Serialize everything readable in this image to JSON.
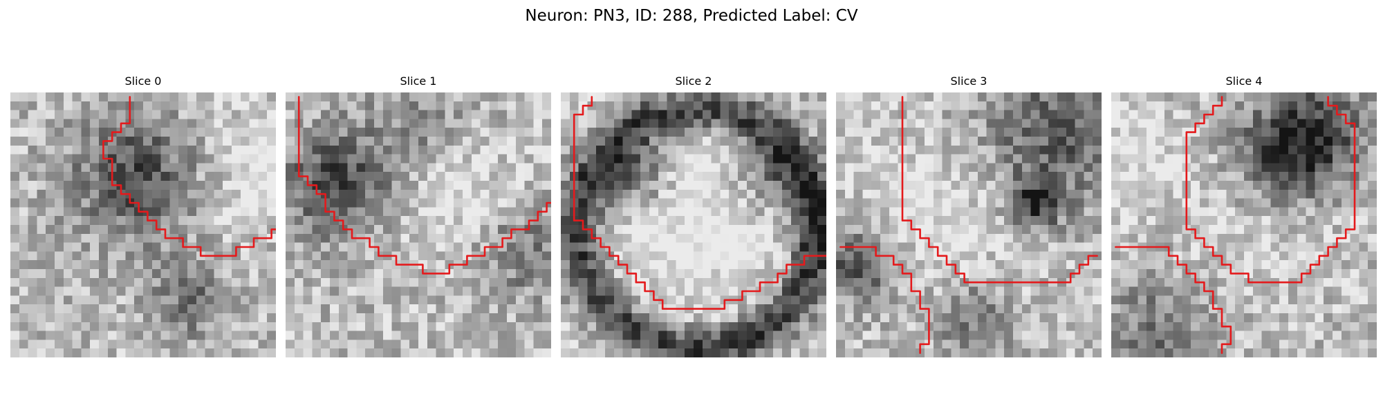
{
  "figure": {
    "title": "Neuron: PN3, ID: 288, Predicted Label: CV"
  },
  "panels": [
    {
      "title": "Slice 0",
      "trace": [
        [
          13,
          0
        ],
        [
          13,
          3
        ],
        [
          12,
          3
        ],
        [
          12,
          4
        ],
        [
          11,
          4
        ],
        [
          11,
          5
        ],
        [
          10,
          5
        ],
        [
          10,
          7
        ],
        [
          11,
          7
        ],
        [
          11,
          10
        ],
        [
          12,
          10
        ],
        [
          12,
          11
        ],
        [
          13,
          11
        ],
        [
          13,
          12
        ],
        [
          14,
          12
        ],
        [
          14,
          13
        ],
        [
          15,
          13
        ],
        [
          15,
          14
        ],
        [
          16,
          14
        ],
        [
          16,
          15
        ],
        [
          17,
          15
        ],
        [
          17,
          16
        ],
        [
          19,
          16
        ],
        [
          19,
          17
        ],
        [
          21,
          17
        ],
        [
          21,
          18
        ],
        [
          25,
          18
        ],
        [
          25,
          17
        ],
        [
          27,
          17
        ],
        [
          27,
          16
        ],
        [
          29,
          16
        ],
        [
          29,
          15
        ],
        [
          30,
          15
        ],
        [
          30,
          14
        ],
        [
          31,
          14
        ],
        [
          31,
          13
        ],
        [
          33,
          13
        ],
        [
          33,
          12
        ],
        [
          34,
          12
        ],
        [
          34,
          11
        ],
        [
          35,
          11
        ],
        [
          35,
          10
        ],
        [
          36,
          10
        ]
      ],
      "seed": 11,
      "blobs": [
        [
          14,
          9,
          5,
          0.55
        ],
        [
          24,
          8,
          6,
          -0.15
        ],
        [
          20,
          23,
          3,
          0.35
        ],
        [
          31,
          8,
          3,
          -0.3
        ]
      ]
    },
    {
      "title": "Slice 1",
      "trace": [
        [
          1,
          0
        ],
        [
          1,
          9
        ],
        [
          2,
          9
        ],
        [
          2,
          10
        ],
        [
          3,
          10
        ],
        [
          3,
          11
        ],
        [
          4,
          11
        ],
        [
          4,
          13
        ],
        [
          5,
          13
        ],
        [
          5,
          14
        ],
        [
          6,
          14
        ],
        [
          6,
          15
        ],
        [
          7,
          15
        ],
        [
          7,
          16
        ],
        [
          9,
          16
        ],
        [
          9,
          17
        ],
        [
          10,
          17
        ],
        [
          10,
          18
        ],
        [
          12,
          18
        ],
        [
          12,
          19
        ],
        [
          15,
          19
        ],
        [
          15,
          20
        ],
        [
          18,
          20
        ],
        [
          18,
          19
        ],
        [
          20,
          19
        ],
        [
          20,
          18
        ],
        [
          22,
          18
        ],
        [
          22,
          17
        ],
        [
          24,
          17
        ],
        [
          24,
          16
        ],
        [
          25,
          16
        ],
        [
          25,
          15
        ],
        [
          27,
          15
        ],
        [
          27,
          14
        ],
        [
          28,
          14
        ],
        [
          28,
          13
        ],
        [
          29,
          13
        ],
        [
          29,
          12
        ],
        [
          31,
          12
        ]
      ],
      "seed": 23,
      "blobs": [
        [
          5,
          10,
          4,
          0.55
        ],
        [
          20,
          12,
          5,
          -0.25
        ],
        [
          26,
          17,
          4,
          0.35
        ],
        [
          14,
          4,
          5,
          0.2
        ]
      ]
    },
    {
      "title": "Slice 2",
      "trace": [
        [
          3,
          0
        ],
        [
          3,
          1
        ],
        [
          2,
          1
        ],
        [
          2,
          2
        ],
        [
          1,
          2
        ],
        [
          1,
          3
        ],
        [
          1,
          14
        ],
        [
          2,
          14
        ],
        [
          2,
          15
        ],
        [
          3,
          15
        ],
        [
          3,
          16
        ],
        [
          4,
          16
        ],
        [
          4,
          17
        ],
        [
          5,
          17
        ],
        [
          5,
          18
        ],
        [
          6,
          18
        ],
        [
          6,
          19
        ],
        [
          7,
          19
        ],
        [
          7,
          20
        ],
        [
          8,
          20
        ],
        [
          8,
          21
        ],
        [
          9,
          21
        ],
        [
          9,
          22
        ],
        [
          10,
          22
        ],
        [
          10,
          23
        ],
        [
          11,
          23
        ],
        [
          11,
          24
        ],
        [
          18,
          24
        ],
        [
          18,
          23
        ],
        [
          20,
          23
        ],
        [
          20,
          22
        ],
        [
          22,
          22
        ],
        [
          22,
          21
        ],
        [
          24,
          21
        ],
        [
          24,
          20
        ],
        [
          25,
          20
        ],
        [
          25,
          19
        ],
        [
          27,
          19
        ],
        [
          27,
          18
        ],
        [
          30,
          18
        ]
      ],
      "ring": [
        15,
        15,
        13.5,
        1.8
      ],
      "seed": 37,
      "blobs": [
        [
          15,
          14,
          8,
          -0.3
        ],
        [
          8,
          9,
          3,
          0.45
        ],
        [
          23,
          9,
          3,
          0.4
        ],
        [
          30,
          15,
          3,
          0.3
        ]
      ]
    },
    {
      "title": "Slice 3",
      "trace": [
        [
          7,
          0
        ],
        [
          7,
          14
        ],
        [
          8,
          14
        ],
        [
          8,
          15
        ],
        [
          9,
          15
        ],
        [
          9,
          16
        ],
        [
          10,
          16
        ],
        [
          10,
          17
        ],
        [
          11,
          17
        ],
        [
          11,
          18
        ],
        [
          12,
          18
        ],
        [
          12,
          19
        ],
        [
          13,
          19
        ],
        [
          13,
          20
        ],
        [
          14,
          20
        ],
        [
          14,
          21
        ],
        [
          26,
          21
        ],
        [
          26,
          20
        ],
        [
          27,
          20
        ],
        [
          27,
          19
        ],
        [
          28,
          19
        ],
        [
          28,
          18
        ],
        [
          29,
          18
        ]
      ],
      "trace2": [
        [
          0,
          17
        ],
        [
          4,
          17
        ],
        [
          4,
          18
        ],
        [
          6,
          18
        ],
        [
          6,
          19
        ],
        [
          7,
          19
        ],
        [
          7,
          20
        ],
        [
          8,
          20
        ],
        [
          8,
          22
        ],
        [
          9,
          22
        ],
        [
          9,
          24
        ],
        [
          10,
          24
        ],
        [
          10,
          28
        ],
        [
          9,
          28
        ],
        [
          9,
          29
        ]
      ],
      "seed": 53,
      "blobs": [
        [
          12,
          13,
          7,
          -0.2
        ],
        [
          22,
          12,
          2,
          0.6
        ],
        [
          2,
          19,
          3,
          0.5
        ],
        [
          24,
          4,
          6,
          0.45
        ],
        [
          15,
          25,
          3,
          0.35
        ]
      ]
    },
    {
      "title": "Slice 4",
      "trace": [
        [
          12,
          0
        ],
        [
          12,
          1
        ],
        [
          11,
          1
        ],
        [
          11,
          2
        ],
        [
          10,
          2
        ],
        [
          10,
          3
        ],
        [
          9,
          3
        ],
        [
          9,
          4
        ],
        [
          8,
          4
        ],
        [
          8,
          15
        ],
        [
          9,
          15
        ],
        [
          9,
          16
        ],
        [
          10,
          16
        ],
        [
          10,
          17
        ],
        [
          11,
          17
        ],
        [
          11,
          18
        ],
        [
          12,
          18
        ],
        [
          12,
          19
        ],
        [
          13,
          19
        ],
        [
          13,
          20
        ],
        [
          15,
          20
        ],
        [
          15,
          21
        ],
        [
          21,
          21
        ],
        [
          21,
          20
        ],
        [
          22,
          20
        ],
        [
          22,
          19
        ],
        [
          23,
          19
        ],
        [
          23,
          18
        ],
        [
          24,
          18
        ],
        [
          24,
          17
        ],
        [
          25,
          17
        ],
        [
          25,
          16
        ],
        [
          26,
          16
        ],
        [
          26,
          15
        ],
        [
          27,
          15
        ],
        [
          27,
          9
        ],
        [
          27,
          3
        ],
        [
          26,
          3
        ],
        [
          26,
          2
        ],
        [
          25,
          2
        ],
        [
          25,
          1
        ],
        [
          24,
          1
        ],
        [
          24,
          0
        ]
      ],
      "trace2": [
        [
          0,
          17
        ],
        [
          6,
          17
        ],
        [
          6,
          18
        ],
        [
          7,
          18
        ],
        [
          7,
          19
        ],
        [
          8,
          19
        ],
        [
          8,
          20
        ],
        [
          9,
          20
        ],
        [
          9,
          21
        ],
        [
          10,
          21
        ],
        [
          10,
          22
        ],
        [
          11,
          22
        ],
        [
          11,
          24
        ],
        [
          12,
          24
        ],
        [
          12,
          26
        ],
        [
          13,
          26
        ],
        [
          13,
          28
        ],
        [
          12,
          28
        ],
        [
          12,
          29
        ]
      ],
      "seed": 71,
      "blobs": [
        [
          19,
          7,
          4,
          0.55
        ],
        [
          23,
          4,
          4,
          0.45
        ],
        [
          5,
          27,
          4,
          0.35
        ],
        [
          18,
          14,
          6,
          -0.15
        ],
        [
          2,
          8,
          4,
          -0.2
        ]
      ]
    }
  ]
}
